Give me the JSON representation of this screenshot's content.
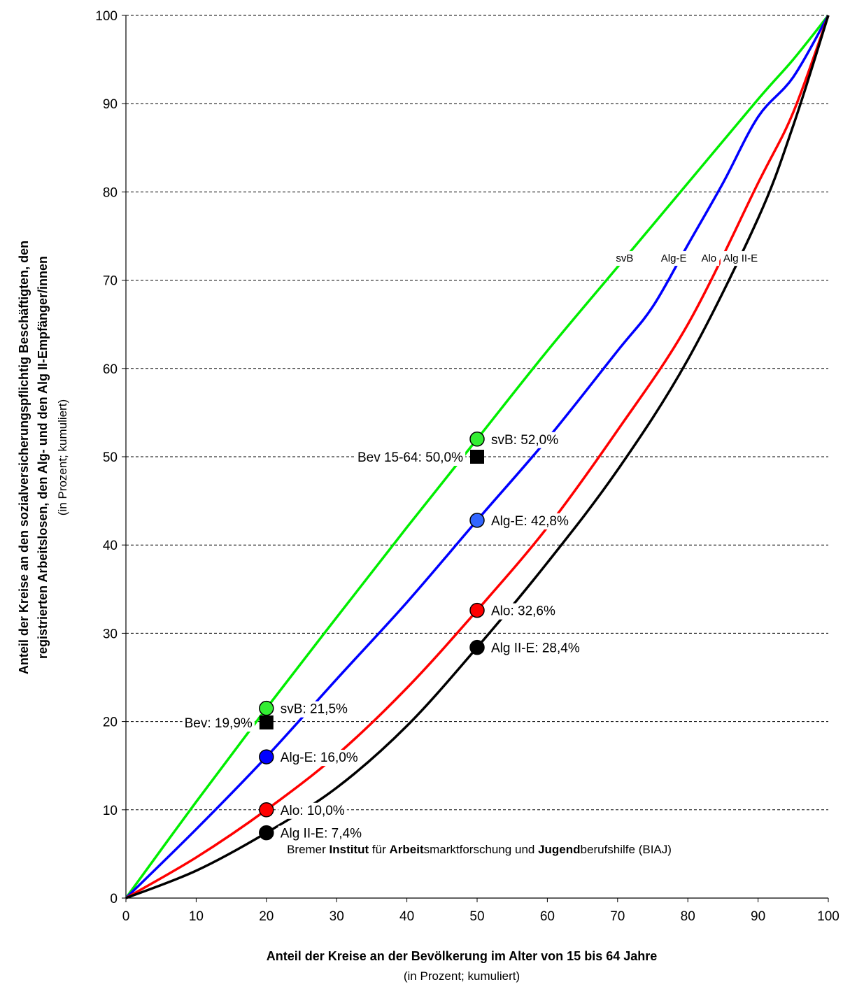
{
  "chart_data": {
    "type": "line",
    "xlim": [
      0,
      100
    ],
    "ylim": [
      0,
      100
    ],
    "x_ticks": [
      "0",
      "10",
      "20",
      "30",
      "40",
      "50",
      "60",
      "70",
      "80",
      "90",
      "100"
    ],
    "y_ticks": [
      "0",
      "10",
      "20",
      "30",
      "40",
      "50",
      "60",
      "70",
      "80",
      "90",
      "100"
    ],
    "grid": "horizontal dashed",
    "xlabel": "Anteil der Kreise an der Bevölkerung im Alter von 15 bis 64 Jahre",
    "xlabel_sub": "(in Prozent; kumuliert)",
    "ylabel_line1": "Anteil der Kreise an den sozialversicherungspflichtig Beschäftigten, den",
    "ylabel_line2": "registrierten Arbeitslosen, den Alg- und den Alg II-Empfänger/innen",
    "ylabel_sub": "(in Prozent; kumuliert)",
    "credit": {
      "parts": [
        {
          "text": "Bremer ",
          "bold": false
        },
        {
          "text": "Institut",
          "bold": true
        },
        {
          "text": " für ",
          "bold": false
        },
        {
          "text": "Arbeit",
          "bold": true
        },
        {
          "text": "smarktforschung und ",
          "bold": false
        },
        {
          "text": "Jugend",
          "bold": true
        },
        {
          "text": "berufshilfe (BIAJ)",
          "bold": false
        }
      ]
    },
    "series": [
      {
        "name": "svB",
        "color": "#00ee00",
        "x": [
          0,
          10,
          20,
          30,
          40,
          50,
          60,
          70,
          80,
          90,
          95,
          100
        ],
        "y": [
          0,
          10.9,
          21.5,
          31.8,
          42,
          52,
          62,
          71.5,
          81,
          90.5,
          95,
          100
        ]
      },
      {
        "name": "Alg-E",
        "color": "#0000ff",
        "x": [
          0,
          10,
          20,
          30,
          40,
          50,
          60,
          70,
          75,
          80,
          85,
          90,
          95,
          100
        ],
        "y": [
          0,
          7.8,
          16,
          24.8,
          33.5,
          42.8,
          52,
          62,
          67,
          74,
          81,
          88.5,
          93,
          100
        ]
      },
      {
        "name": "Alo",
        "color": "#ff0000",
        "x": [
          0,
          10,
          20,
          30,
          40,
          50,
          60,
          70,
          80,
          90,
          95,
          100
        ],
        "y": [
          0,
          4.6,
          10,
          16.2,
          23.8,
          32.6,
          42,
          53,
          65,
          81,
          89,
          100
        ]
      },
      {
        "name": "Alg II-E",
        "color": "#000000",
        "x": [
          0,
          10,
          20,
          30,
          40,
          50,
          60,
          70,
          80,
          90,
          95,
          100
        ],
        "y": [
          0,
          3.1,
          7.4,
          12.5,
          19.5,
          28.4,
          38,
          48.5,
          61,
          77,
          87.5,
          100
        ]
      }
    ],
    "curve_labels": [
      {
        "text": "svB",
        "x": 71,
        "y": 72.5
      },
      {
        "text": "Alg-E",
        "x": 78,
        "y": 72.5
      },
      {
        "text": "Alo",
        "x": 83,
        "y": 72.5
      },
      {
        "text": "Alg II-E",
        "x": 87.5,
        "y": 72.5
      }
    ],
    "markers": [
      {
        "x": 50,
        "y": 52.0,
        "shape": "circle",
        "color": "#33ee33",
        "label": "svB: 52,0%",
        "side": "right"
      },
      {
        "x": 50,
        "y": 50.0,
        "shape": "square",
        "color": "#000000",
        "label": "Bev 15-64: 50,0%",
        "side": "left"
      },
      {
        "x": 50,
        "y": 42.8,
        "shape": "circle",
        "color": "#3366ff",
        "label": "Alg-E: 42,8%",
        "side": "right"
      },
      {
        "x": 50,
        "y": 32.6,
        "shape": "circle",
        "color": "#ff0000",
        "label": "Alo: 32,6%",
        "side": "right"
      },
      {
        "x": 50,
        "y": 28.4,
        "shape": "circle",
        "color": "#000000",
        "label": "Alg II-E: 28,4%",
        "side": "right"
      },
      {
        "x": 20,
        "y": 21.5,
        "shape": "circle",
        "color": "#33ee33",
        "label": "svB: 21,5%",
        "side": "right"
      },
      {
        "x": 20,
        "y": 19.9,
        "shape": "square",
        "color": "#000000",
        "label": "Bev: 19,9%",
        "side": "left"
      },
      {
        "x": 20,
        "y": 16.0,
        "shape": "circle",
        "color": "#0000ff",
        "label": "Alg-E: 16,0%",
        "side": "right"
      },
      {
        "x": 20,
        "y": 10.0,
        "shape": "circle",
        "color": "#ff0000",
        "label": "Alo: 10,0%",
        "side": "right"
      },
      {
        "x": 20,
        "y": 7.4,
        "shape": "circle",
        "color": "#000000",
        "label": "Alg II-E: 7,4%",
        "side": "right"
      }
    ]
  }
}
